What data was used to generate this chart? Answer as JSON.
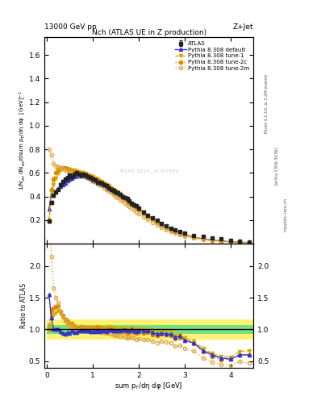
{
  "title": "Nch (ATLAS UE in Z production)",
  "top_left_label": "13000 GeV pp",
  "top_right_label": "Z+Jet",
  "ylabel_main": "1/N$_{ev}$ dN$_{ev}$/dsum p$_T$/dη dφ  [GeV]$^{-1}$",
  "ylabel_ratio": "Ratio to ATLAS",
  "xlabel": "sum p$_T$/dη dφ [GeV]",
  "right_label1": "Rivet 3.1.10, ≥ 3.2M events",
  "right_label2": "[arXiv:1306.3436]",
  "right_label3": "mcplots.cern.ch",
  "watermark": "ATLAS_2014__I1307531",
  "ylim_main": [
    0.0,
    1.75
  ],
  "ylim_ratio": [
    0.4,
    2.35
  ],
  "xlim": [
    -0.05,
    4.5
  ],
  "atlas_x": [
    0.05,
    0.1,
    0.15,
    0.2,
    0.25,
    0.3,
    0.35,
    0.4,
    0.45,
    0.5,
    0.55,
    0.6,
    0.65,
    0.7,
    0.75,
    0.8,
    0.85,
    0.9,
    0.95,
    1.0,
    1.05,
    1.1,
    1.15,
    1.2,
    1.25,
    1.3,
    1.35,
    1.4,
    1.45,
    1.5,
    1.55,
    1.6,
    1.65,
    1.7,
    1.75,
    1.8,
    1.85,
    1.9,
    1.95,
    2.0,
    2.1,
    2.2,
    2.3,
    2.4,
    2.5,
    2.6,
    2.7,
    2.8,
    2.9,
    3.0,
    3.2,
    3.4,
    3.6,
    3.8,
    4.0,
    4.2,
    4.4
  ],
  "atlas_y": [
    0.19,
    0.35,
    0.41,
    0.44,
    0.46,
    0.5,
    0.53,
    0.55,
    0.56,
    0.58,
    0.57,
    0.59,
    0.6,
    0.59,
    0.58,
    0.59,
    0.58,
    0.57,
    0.56,
    0.55,
    0.54,
    0.52,
    0.52,
    0.51,
    0.5,
    0.49,
    0.47,
    0.46,
    0.45,
    0.44,
    0.43,
    0.42,
    0.4,
    0.39,
    0.38,
    0.36,
    0.34,
    0.33,
    0.32,
    0.3,
    0.27,
    0.24,
    0.22,
    0.2,
    0.17,
    0.15,
    0.13,
    0.12,
    0.1,
    0.09,
    0.07,
    0.06,
    0.05,
    0.04,
    0.03,
    0.02,
    0.015
  ],
  "atlas_err": [
    0.012,
    0.012,
    0.01,
    0.01,
    0.01,
    0.01,
    0.01,
    0.01,
    0.01,
    0.01,
    0.01,
    0.01,
    0.01,
    0.01,
    0.01,
    0.01,
    0.01,
    0.01,
    0.01,
    0.01,
    0.01,
    0.01,
    0.01,
    0.01,
    0.01,
    0.01,
    0.01,
    0.01,
    0.01,
    0.01,
    0.01,
    0.01,
    0.01,
    0.01,
    0.01,
    0.01,
    0.009,
    0.009,
    0.009,
    0.009,
    0.008,
    0.008,
    0.007,
    0.007,
    0.006,
    0.006,
    0.005,
    0.005,
    0.004,
    0.004,
    0.003,
    0.003,
    0.002,
    0.002,
    0.002,
    0.001,
    0.001
  ],
  "pythia_default_x": [
    0.05,
    0.1,
    0.15,
    0.2,
    0.25,
    0.3,
    0.35,
    0.4,
    0.45,
    0.5,
    0.55,
    0.6,
    0.65,
    0.7,
    0.75,
    0.8,
    0.85,
    0.9,
    0.95,
    1.0,
    1.05,
    1.1,
    1.15,
    1.2,
    1.25,
    1.3,
    1.35,
    1.4,
    1.45,
    1.5,
    1.55,
    1.6,
    1.65,
    1.7,
    1.75,
    1.8,
    1.85,
    1.9,
    1.95,
    2.0,
    2.1,
    2.2,
    2.3,
    2.4,
    2.5,
    2.6,
    2.7,
    2.8,
    2.9,
    3.0,
    3.2,
    3.4,
    3.6,
    3.8,
    4.0,
    4.2,
    4.4
  ],
  "pythia_default_y": [
    0.295,
    0.415,
    0.41,
    0.44,
    0.465,
    0.485,
    0.5,
    0.51,
    0.535,
    0.545,
    0.555,
    0.565,
    0.575,
    0.575,
    0.575,
    0.575,
    0.565,
    0.56,
    0.545,
    0.535,
    0.525,
    0.515,
    0.505,
    0.5,
    0.49,
    0.475,
    0.465,
    0.455,
    0.44,
    0.43,
    0.42,
    0.41,
    0.395,
    0.385,
    0.37,
    0.355,
    0.34,
    0.325,
    0.31,
    0.295,
    0.265,
    0.235,
    0.21,
    0.185,
    0.16,
    0.14,
    0.12,
    0.105,
    0.09,
    0.075,
    0.055,
    0.04,
    0.03,
    0.022,
    0.016,
    0.012,
    0.009
  ],
  "pythia_tune1_x": [
    0.05,
    0.1,
    0.15,
    0.2,
    0.25,
    0.3,
    0.35,
    0.4,
    0.45,
    0.5,
    0.55,
    0.6,
    0.65,
    0.7,
    0.75,
    0.8,
    0.85,
    0.9,
    0.95,
    1.0,
    1.05,
    1.1,
    1.15,
    1.2,
    1.25,
    1.3,
    1.35,
    1.4,
    1.45,
    1.5,
    1.55,
    1.6,
    1.65,
    1.7,
    1.75,
    1.8,
    1.85,
    1.9,
    1.95,
    2.0,
    2.1,
    2.2,
    2.3,
    2.4,
    2.5,
    2.6,
    2.7,
    2.8,
    2.9,
    3.0,
    3.2,
    3.4,
    3.6,
    3.8,
    4.0,
    4.2,
    4.4
  ],
  "pythia_tune1_y": [
    0.2,
    0.435,
    0.5,
    0.555,
    0.595,
    0.625,
    0.635,
    0.635,
    0.635,
    0.63,
    0.625,
    0.62,
    0.615,
    0.61,
    0.605,
    0.6,
    0.595,
    0.585,
    0.575,
    0.565,
    0.555,
    0.545,
    0.535,
    0.525,
    0.51,
    0.5,
    0.49,
    0.475,
    0.46,
    0.445,
    0.435,
    0.42,
    0.405,
    0.39,
    0.375,
    0.36,
    0.345,
    0.33,
    0.315,
    0.3,
    0.27,
    0.24,
    0.215,
    0.19,
    0.165,
    0.145,
    0.125,
    0.108,
    0.092,
    0.078,
    0.057,
    0.042,
    0.031,
    0.023,
    0.017,
    0.013,
    0.01
  ],
  "pythia_tune2c_x": [
    0.05,
    0.1,
    0.15,
    0.2,
    0.25,
    0.3,
    0.35,
    0.4,
    0.45,
    0.5,
    0.55,
    0.6,
    0.65,
    0.7,
    0.75,
    0.8,
    0.85,
    0.9,
    0.95,
    1.0,
    1.05,
    1.1,
    1.15,
    1.2,
    1.25,
    1.3,
    1.35,
    1.4,
    1.45,
    1.5,
    1.55,
    1.6,
    1.65,
    1.7,
    1.75,
    1.8,
    1.85,
    1.9,
    1.95,
    2.0,
    2.1,
    2.2,
    2.3,
    2.4,
    2.5,
    2.6,
    2.7,
    2.8,
    2.9,
    3.0,
    3.2,
    3.4,
    3.6,
    3.8,
    4.0,
    4.2,
    4.4
  ],
  "pythia_tune2c_y": [
    0.19,
    0.46,
    0.55,
    0.6,
    0.63,
    0.645,
    0.645,
    0.64,
    0.63,
    0.625,
    0.615,
    0.61,
    0.605,
    0.6,
    0.595,
    0.59,
    0.585,
    0.575,
    0.565,
    0.555,
    0.545,
    0.535,
    0.525,
    0.515,
    0.5,
    0.49,
    0.475,
    0.46,
    0.445,
    0.43,
    0.42,
    0.405,
    0.39,
    0.375,
    0.36,
    0.345,
    0.33,
    0.315,
    0.3,
    0.285,
    0.255,
    0.228,
    0.203,
    0.18,
    0.157,
    0.137,
    0.118,
    0.102,
    0.087,
    0.074,
    0.054,
    0.039,
    0.029,
    0.021,
    0.016,
    0.012,
    0.009
  ],
  "pythia_tune2m_x": [
    0.05,
    0.1,
    0.15,
    0.2,
    0.25,
    0.3,
    0.35,
    0.4,
    0.45,
    0.5,
    0.55,
    0.6,
    0.65,
    0.7,
    0.75,
    0.8,
    0.85,
    0.9,
    0.95,
    1.0,
    1.05,
    1.1,
    1.15,
    1.2,
    1.25,
    1.3,
    1.35,
    1.4,
    1.45,
    1.5,
    1.55,
    1.6,
    1.65,
    1.7,
    1.75,
    1.8,
    1.85,
    1.9,
    1.95,
    2.0,
    2.1,
    2.2,
    2.3,
    2.4,
    2.5,
    2.6,
    2.7,
    2.8,
    2.9,
    3.0,
    3.2,
    3.4,
    3.6,
    3.8,
    4.0,
    4.2,
    4.4
  ],
  "pythia_tune2m_y": [
    0.8,
    0.75,
    0.68,
    0.66,
    0.655,
    0.645,
    0.635,
    0.625,
    0.615,
    0.605,
    0.6,
    0.595,
    0.59,
    0.585,
    0.58,
    0.575,
    0.565,
    0.555,
    0.545,
    0.535,
    0.525,
    0.515,
    0.5,
    0.49,
    0.475,
    0.46,
    0.445,
    0.43,
    0.415,
    0.4,
    0.387,
    0.373,
    0.36,
    0.345,
    0.33,
    0.315,
    0.3,
    0.285,
    0.27,
    0.255,
    0.228,
    0.203,
    0.18,
    0.158,
    0.138,
    0.12,
    0.103,
    0.088,
    0.075,
    0.063,
    0.046,
    0.033,
    0.024,
    0.018,
    0.013,
    0.01,
    0.007
  ],
  "green_band_x": [
    0.0,
    0.5,
    1.0,
    1.5,
    2.0,
    2.5,
    3.0,
    3.5,
    4.0,
    4.5
  ],
  "green_band_lo": [
    0.93,
    0.93,
    0.93,
    0.93,
    0.93,
    0.93,
    0.93,
    0.93,
    0.93,
    0.93
  ],
  "green_band_hi": [
    1.07,
    1.07,
    1.07,
    1.07,
    1.07,
    1.07,
    1.07,
    1.07,
    1.07,
    1.07
  ],
  "yellow_band_x": [
    0.0,
    0.5,
    1.0,
    1.5,
    2.0,
    2.5,
    3.0,
    3.5,
    4.0,
    4.5
  ],
  "yellow_band_lo": [
    0.84,
    0.84,
    0.84,
    0.84,
    0.84,
    0.84,
    0.84,
    0.84,
    0.84,
    0.84
  ],
  "yellow_band_hi": [
    1.16,
    1.16,
    1.16,
    1.16,
    1.16,
    1.16,
    1.16,
    1.16,
    1.16,
    1.16
  ],
  "color_atlas": "#222222",
  "color_default": "#3333cc",
  "color_tune1": "#ddaa00",
  "color_tune2c": "#dd8800",
  "color_tune2m": "#ddaa44",
  "color_green": "#44dd88",
  "color_yellow": "#ffee44",
  "yticks_main": [
    0.2,
    0.4,
    0.6,
    0.8,
    1.0,
    1.2,
    1.4,
    1.6
  ],
  "yticks_ratio": [
    0.5,
    1.0,
    1.5,
    2.0
  ]
}
